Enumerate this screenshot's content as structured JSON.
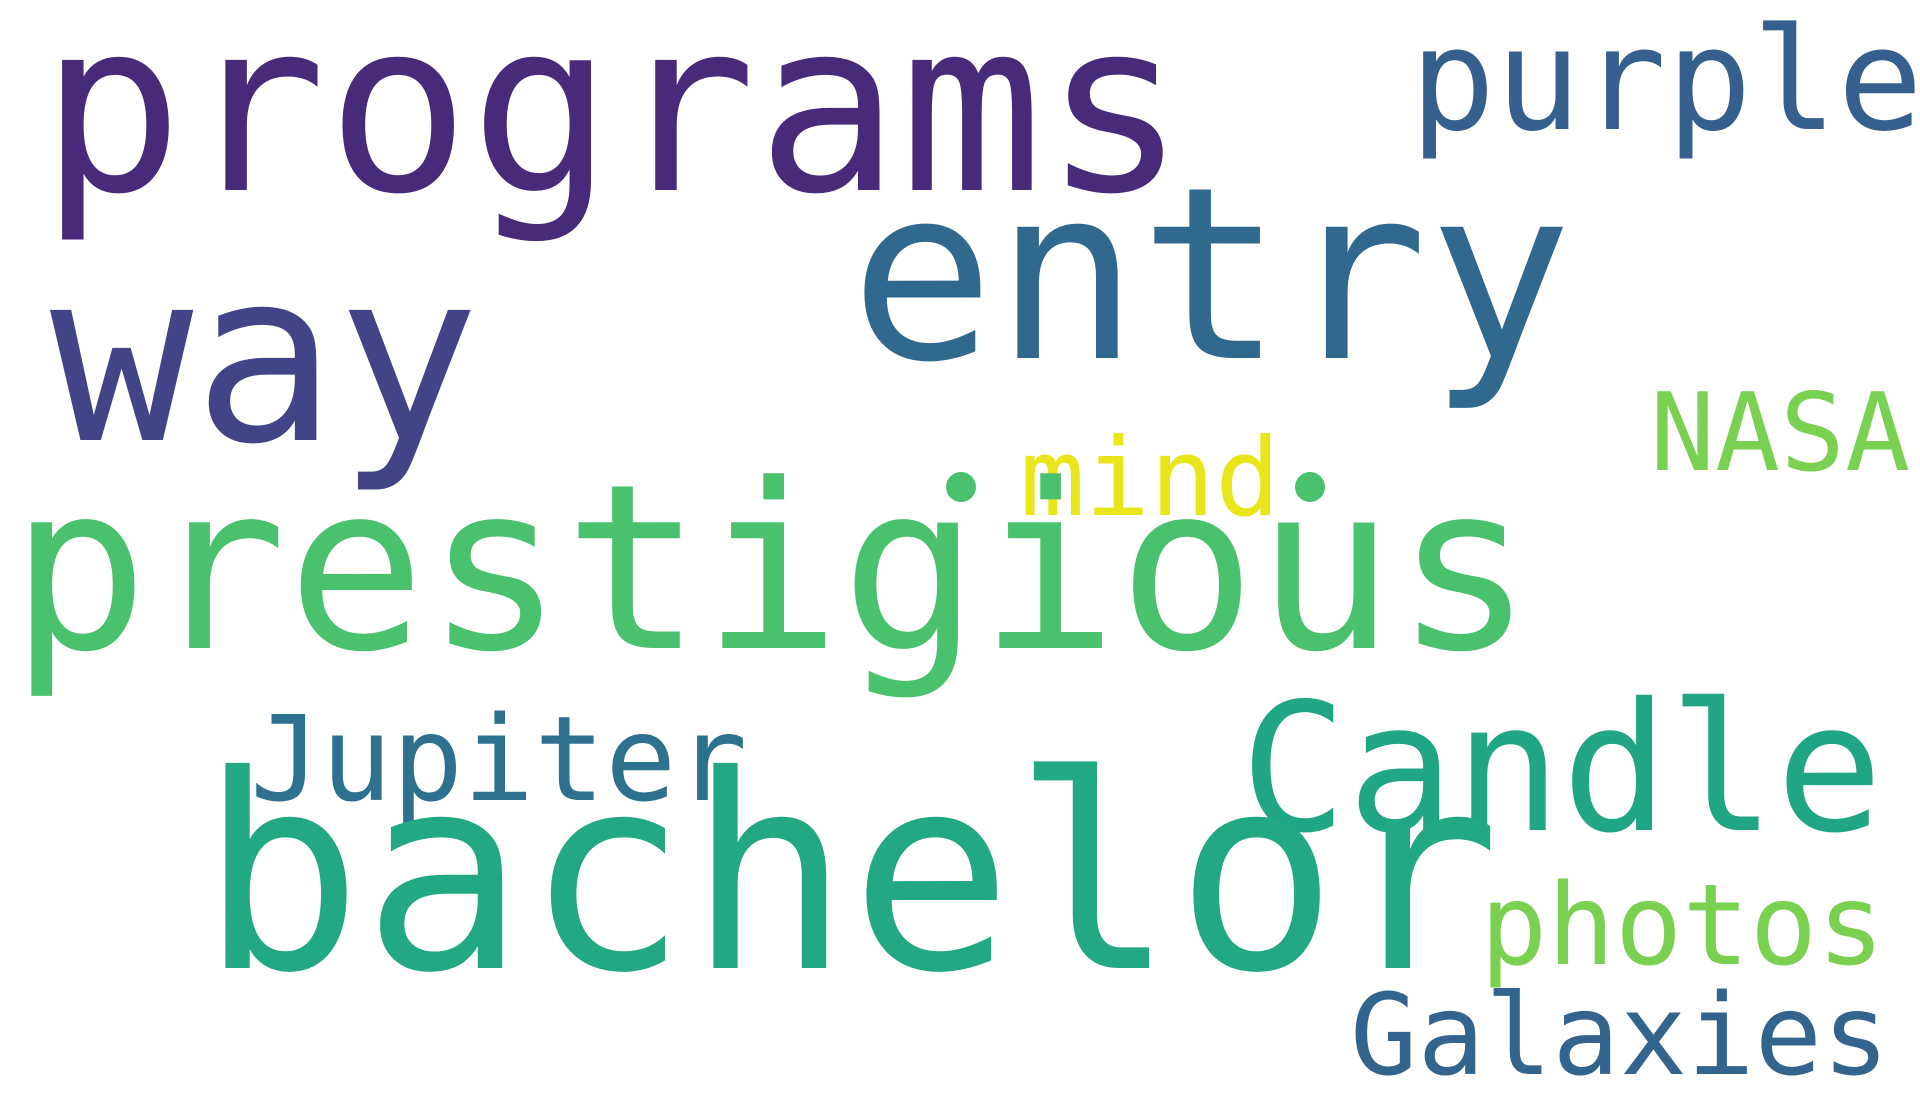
{
  "words": [
    {
      "text": "programs",
      "color": "#472a7a"
    },
    {
      "text": "entry",
      "color": "#30688e"
    },
    {
      "text": "purple",
      "color": "#35608d"
    },
    {
      "text": "way",
      "color": "#414487"
    },
    {
      "text": "NASA",
      "color": "#7ad151"
    },
    {
      "text": "mind",
      "color": "#eae51a"
    },
    {
      "text": "prestigious",
      "color": "#4ac16d"
    },
    {
      "text": "Jupiter",
      "color": "#2d718e"
    },
    {
      "text": "Candle",
      "color": "#21a685"
    },
    {
      "text": "bachelor",
      "color": "#23a884"
    },
    {
      "text": "photos",
      "color": "#7ad151"
    },
    {
      "text": "Galaxies",
      "color": "#32648e"
    }
  ],
  "dots": [
    {
      "color": "#4ac16d"
    },
    {
      "color": "#4ac16d"
    }
  ]
}
